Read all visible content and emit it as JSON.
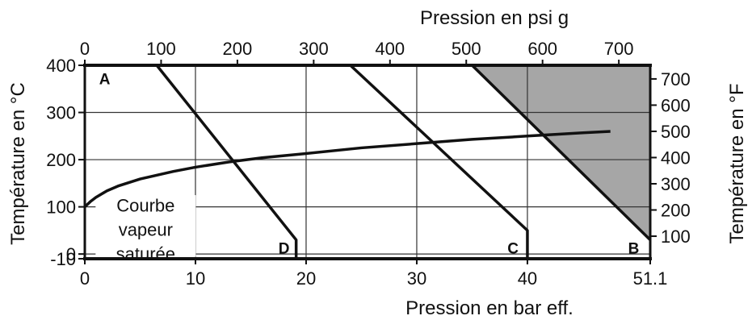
{
  "chart_data": {
    "type": "line",
    "title": "",
    "x_axis_bottom": {
      "label": "Pression en bar eff.",
      "ticks": [
        0,
        10,
        20,
        30,
        40,
        51.1
      ],
      "tick_labels": [
        "0",
        "10",
        "20",
        "30",
        "40",
        "51.1"
      ],
      "range": [
        0,
        51.1
      ]
    },
    "x_axis_top": {
      "label": "Pression en psi g",
      "ticks": [
        0,
        100,
        200,
        300,
        400,
        500,
        600,
        700
      ],
      "tick_labels": [
        "0",
        "100",
        "200",
        "300",
        "400",
        "500",
        "600",
        "700"
      ]
    },
    "y_axis_left": {
      "label": "Température en °C",
      "ticks": [
        -10,
        0,
        100,
        200,
        300,
        400
      ],
      "tick_labels": [
        "-10",
        "0",
        "100",
        "200",
        "300",
        "400"
      ],
      "range": [
        -10,
        400
      ]
    },
    "y_axis_right": {
      "label": "Température en °F",
      "ticks": [
        100,
        200,
        300,
        400,
        500,
        600,
        700
      ],
      "tick_labels": [
        "100",
        "200",
        "300",
        "400",
        "500",
        "600",
        "700"
      ]
    },
    "series": [
      {
        "name": "Courbe vapeur saturée",
        "x": [
          0,
          0.5,
          1,
          2,
          3,
          5,
          8,
          10,
          13,
          16,
          20,
          25,
          30,
          35,
          40,
          45,
          47.5
        ],
        "y": [
          100,
          111,
          120,
          134,
          144,
          159,
          175,
          184,
          195,
          204,
          213,
          225,
          234,
          243,
          250,
          257,
          260
        ]
      },
      {
        "name": "D",
        "x": [
          6.5,
          19.1,
          19.1
        ],
        "y": [
          400,
          30,
          -10
        ]
      },
      {
        "name": "C",
        "x": [
          24,
          40,
          40
        ],
        "y": [
          400,
          50,
          -10
        ]
      },
      {
        "name": "B",
        "x": [
          35,
          51.1
        ],
        "y": [
          400,
          30
        ]
      }
    ],
    "shaded_region": {
      "x": [
        35,
        51.1,
        51.1
      ],
      "y": [
        400,
        400,
        30
      ],
      "color": "#a6a6a6"
    },
    "region_labels": [
      "A",
      "B",
      "C",
      "D"
    ],
    "annotation_lines": [
      "Courbe",
      "vapeur",
      "saturée"
    ],
    "grid": true,
    "colors": {
      "line": "#111111",
      "grid": "#333333",
      "shade": "#a6a6a6"
    }
  }
}
